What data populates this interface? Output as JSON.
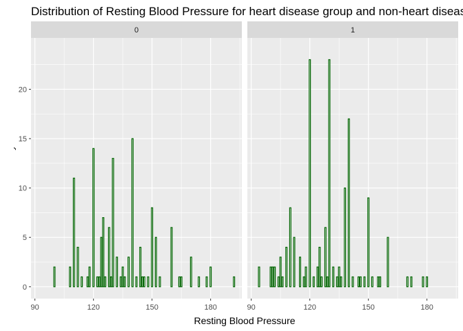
{
  "chart_data": {
    "type": "bar",
    "title": "Distribution of Resting Blood Pressure for heart disease group and non-heart disease group",
    "xlabel": "Resting Blood Pressure",
    "ylabel": "Frequency",
    "xlim": [
      88,
      196
    ],
    "ylim": [
      -1.2,
      25.2
    ],
    "x_ticks": [
      90,
      120,
      150,
      180
    ],
    "y_ticks": [
      0,
      5,
      10,
      15,
      20
    ],
    "grid": true,
    "bar_fill": "#006400",
    "bar_border": "#006400",
    "panel_background": "#ebebeb",
    "strip_background": "#d9d9d9",
    "panels": [
      {
        "label": "0",
        "bars": [
          {
            "x": 100,
            "y": 2
          },
          {
            "x": 108,
            "y": 2
          },
          {
            "x": 110,
            "y": 11
          },
          {
            "x": 112,
            "y": 4
          },
          {
            "x": 114,
            "y": 1
          },
          {
            "x": 117,
            "y": 1
          },
          {
            "x": 118,
            "y": 2
          },
          {
            "x": 120,
            "y": 14
          },
          {
            "x": 122,
            "y": 1
          },
          {
            "x": 123,
            "y": 1
          },
          {
            "x": 124,
            "y": 5
          },
          {
            "x": 125,
            "y": 7
          },
          {
            "x": 126,
            "y": 1
          },
          {
            "x": 128,
            "y": 6
          },
          {
            "x": 129,
            "y": 1
          },
          {
            "x": 130,
            "y": 13
          },
          {
            "x": 132,
            "y": 3
          },
          {
            "x": 134,
            "y": 1
          },
          {
            "x": 135,
            "y": 2
          },
          {
            "x": 136,
            "y": 1
          },
          {
            "x": 138,
            "y": 3
          },
          {
            "x": 140,
            "y": 15
          },
          {
            "x": 142,
            "y": 1
          },
          {
            "x": 144,
            "y": 4
          },
          {
            "x": 145,
            "y": 1
          },
          {
            "x": 146,
            "y": 1
          },
          {
            "x": 148,
            "y": 1
          },
          {
            "x": 150,
            "y": 8
          },
          {
            "x": 152,
            "y": 5
          },
          {
            "x": 154,
            "y": 1
          },
          {
            "x": 160,
            "y": 6
          },
          {
            "x": 164,
            "y": 1
          },
          {
            "x": 165,
            "y": 1
          },
          {
            "x": 170,
            "y": 3
          },
          {
            "x": 174,
            "y": 1
          },
          {
            "x": 178,
            "y": 1
          },
          {
            "x": 180,
            "y": 2
          },
          {
            "x": 192,
            "y": 1
          },
          {
            "x": 200,
            "y": 1
          }
        ]
      },
      {
        "label": "1",
        "bars": [
          {
            "x": 94,
            "y": 2
          },
          {
            "x": 100,
            "y": 2
          },
          {
            "x": 101,
            "y": 2
          },
          {
            "x": 102,
            "y": 2
          },
          {
            "x": 104,
            "y": 1
          },
          {
            "x": 105,
            "y": 3
          },
          {
            "x": 106,
            "y": 1
          },
          {
            "x": 108,
            "y": 4
          },
          {
            "x": 110,
            "y": 8
          },
          {
            "x": 112,
            "y": 5
          },
          {
            "x": 115,
            "y": 3
          },
          {
            "x": 117,
            "y": 1
          },
          {
            "x": 118,
            "y": 2
          },
          {
            "x": 120,
            "y": 23
          },
          {
            "x": 122,
            "y": 1
          },
          {
            "x": 124,
            "y": 2
          },
          {
            "x": 125,
            "y": 4
          },
          {
            "x": 126,
            "y": 1
          },
          {
            "x": 128,
            "y": 6
          },
          {
            "x": 129,
            "y": 1
          },
          {
            "x": 130,
            "y": 23
          },
          {
            "x": 132,
            "y": 2
          },
          {
            "x": 134,
            "y": 1
          },
          {
            "x": 135,
            "y": 2
          },
          {
            "x": 136,
            "y": 1
          },
          {
            "x": 138,
            "y": 10
          },
          {
            "x": 140,
            "y": 17
          },
          {
            "x": 142,
            "y": 1
          },
          {
            "x": 145,
            "y": 1
          },
          {
            "x": 146,
            "y": 1
          },
          {
            "x": 148,
            "y": 1
          },
          {
            "x": 150,
            "y": 9
          },
          {
            "x": 152,
            "y": 1
          },
          {
            "x": 155,
            "y": 1
          },
          {
            "x": 156,
            "y": 1
          },
          {
            "x": 160,
            "y": 5
          },
          {
            "x": 170,
            "y": 1
          },
          {
            "x": 172,
            "y": 1
          },
          {
            "x": 178,
            "y": 1
          },
          {
            "x": 180,
            "y": 1
          }
        ]
      }
    ]
  }
}
